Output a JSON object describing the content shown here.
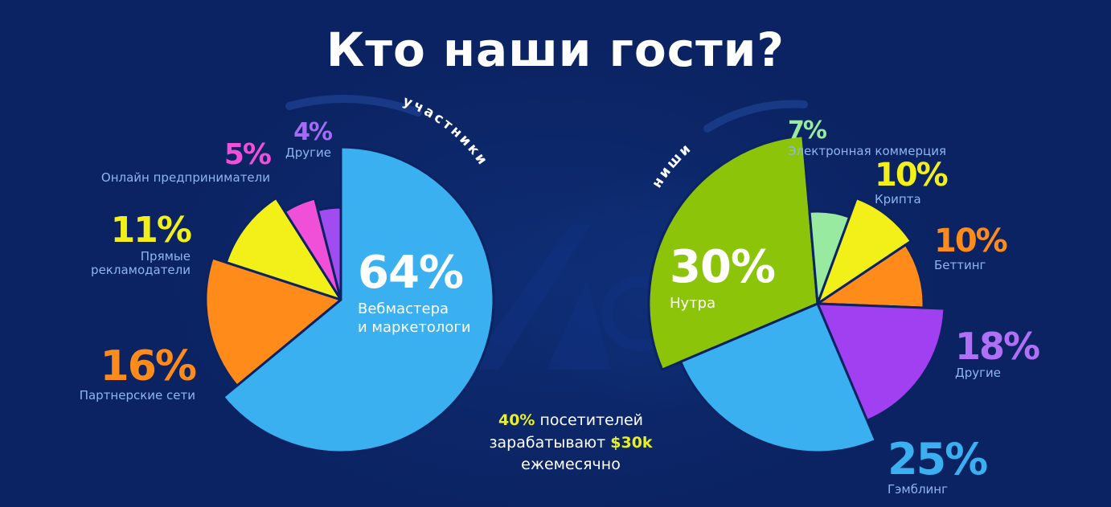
{
  "title": "Кто наши гости?",
  "chart_data": [
    {
      "type": "pie",
      "title": "участники",
      "slices": [
        {
          "label": "Вебмастера и маркетологи",
          "value": 64,
          "pct_text": "64%",
          "color": "#3ab0f0"
        },
        {
          "label": "Партнерские сети",
          "value": 16,
          "pct_text": "16%",
          "color": "#ff8c1a"
        },
        {
          "label": "Прямые рекламодатели",
          "value": 11,
          "pct_text": "11%",
          "color": "#f2f018"
        },
        {
          "label": "Онлайн предприниматели",
          "value": 5,
          "pct_text": "5%",
          "color": "#f050d8"
        },
        {
          "label": "Другие",
          "value": 4,
          "pct_text": "4%",
          "color": "#a04cf0"
        }
      ]
    },
    {
      "type": "pie",
      "title": "ниши",
      "slices": [
        {
          "label": "Нутра",
          "value": 30,
          "pct_text": "30%",
          "color": "#8cc40a"
        },
        {
          "label": "Электронная коммерция",
          "value": 7,
          "pct_text": "7%",
          "color": "#98eaa0"
        },
        {
          "label": "Крипта",
          "value": 10,
          "pct_text": "10%",
          "color": "#f2f018"
        },
        {
          "label": "Беттинг",
          "value": 10,
          "pct_text": "10%",
          "color": "#ff8c1a"
        },
        {
          "label": "Другие",
          "value": 18,
          "pct_text": "18%",
          "color": "#a040f0"
        },
        {
          "label": "Гэмблинг",
          "value": 25,
          "pct_text": "25%",
          "color": "#3ab0f0"
        }
      ]
    }
  ],
  "labels": {
    "left": {
      "big_pct": "64%",
      "big_cap1": "Вебмастера",
      "big_cap2": "и маркетологи",
      "p16": "16%",
      "c16": "Партнерские сети",
      "p11": "11%",
      "c11a": "Прямые",
      "c11b": "рекламодатели",
      "p5": "5%",
      "c5": "Онлайн предприниматели",
      "p4": "4%",
      "c4": "Другие"
    },
    "right": {
      "big_pct": "30%",
      "big_cap": "Нутра",
      "p7": "7%",
      "c7": "Электронная коммерция",
      "p10a": "10%",
      "c10a": "Крипта",
      "p10b": "10%",
      "c10b": "Беттинг",
      "p18": "18%",
      "c18": "Другие",
      "p25": "25%",
      "c25": "Гэмблинг"
    }
  },
  "note": {
    "pct": "40%",
    "line1_rest": " посетителей",
    "line2_pre": "зарабатывают ",
    "amount": "$30k",
    "line3": "ежемесячно"
  }
}
